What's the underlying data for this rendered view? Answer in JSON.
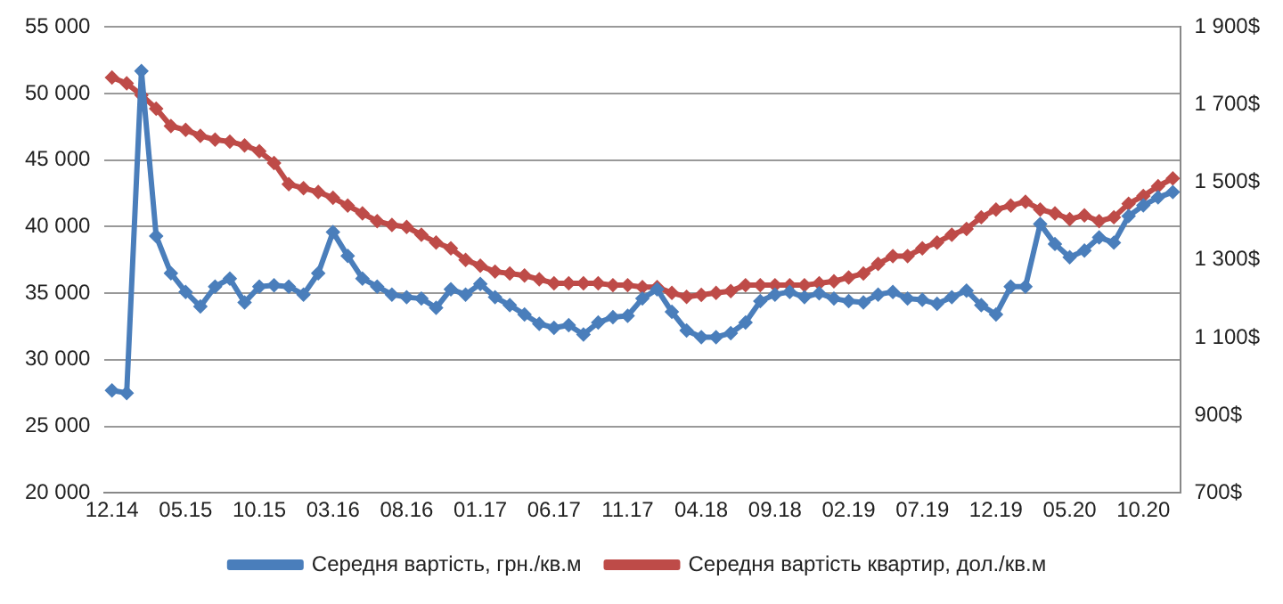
{
  "chart_data": {
    "type": "line",
    "categories": [
      "12.14",
      null,
      null,
      null,
      null,
      "05.15",
      null,
      null,
      null,
      null,
      "10.15",
      null,
      null,
      null,
      null,
      "03.16",
      null,
      null,
      null,
      null,
      "08.16",
      null,
      null,
      null,
      null,
      "01.17",
      null,
      null,
      null,
      null,
      "06.17",
      null,
      null,
      null,
      null,
      "11.17",
      null,
      null,
      null,
      null,
      "04.18",
      null,
      null,
      null,
      null,
      "09.18",
      null,
      null,
      null,
      null,
      "02.19",
      null,
      null,
      null,
      null,
      "07.19",
      null,
      null,
      null,
      null,
      "12.19",
      null,
      null,
      null,
      null,
      "05.20",
      null,
      null,
      null,
      null,
      "10.20",
      null,
      null
    ],
    "series": [
      {
        "name": "Середня вартість, грн./кв.м",
        "color": "#4a7ebb",
        "values": [
          27700,
          27500,
          51700,
          39300,
          36500,
          35100,
          34000,
          35500,
          36100,
          34300,
          35500,
          35600,
          35500,
          34900,
          36500,
          39600,
          37800,
          36100,
          35500,
          34900,
          34700,
          34600,
          33900,
          35300,
          34900,
          35700,
          34700,
          34100,
          33400,
          32700,
          32400,
          32600,
          31900,
          32800,
          33200,
          33300,
          34600,
          35300,
          33600,
          32200,
          31700,
          31700,
          32000,
          32800,
          34400,
          34900,
          35100,
          34700,
          35000,
          34600,
          34400,
          34300,
          34900,
          35100,
          34600,
          34500,
          34200,
          34700,
          35200,
          34100,
          33400,
          35500,
          35500,
          40200,
          38700,
          37700,
          38200,
          39200,
          38800,
          40800,
          41600,
          42200,
          42600
        ]
      },
      {
        "name": "Середня вартість квартир, дол./кв.м",
        "color": "#be4b48",
        "axis": "y2",
        "values": [
          1770,
          1755,
          1725,
          1690,
          1645,
          1635,
          1620,
          1610,
          1605,
          1595,
          1580,
          1550,
          1495,
          1485,
          1475,
          1460,
          1440,
          1420,
          1400,
          1390,
          1385,
          1365,
          1345,
          1330,
          1300,
          1285,
          1270,
          1265,
          1260,
          1250,
          1240,
          1240,
          1240,
          1240,
          1235,
          1235,
          1230,
          1230,
          1215,
          1205,
          1210,
          1215,
          1220,
          1235,
          1235,
          1235,
          1235,
          1235,
          1240,
          1245,
          1255,
          1265,
          1290,
          1310,
          1310,
          1330,
          1345,
          1365,
          1380,
          1410,
          1430,
          1440,
          1450,
          1430,
          1420,
          1405,
          1415,
          1400,
          1410,
          1445,
          1465,
          1490,
          1510
        ]
      }
    ],
    "ylim": [
      20000,
      55000
    ],
    "yticks": [
      {
        "value": 20000,
        "label": "20 000"
      },
      {
        "value": 25000,
        "label": "25 000"
      },
      {
        "value": 30000,
        "label": "30 000"
      },
      {
        "value": 35000,
        "label": "35 000"
      },
      {
        "value": 40000,
        "label": "40 000"
      },
      {
        "value": 45000,
        "label": "45 000"
      },
      {
        "value": 50000,
        "label": "50 000"
      },
      {
        "value": 55000,
        "label": "55 000"
      }
    ],
    "y2lim": [
      700,
      1900
    ],
    "y2ticks": [
      {
        "value": 700,
        "label": "700$"
      },
      {
        "value": 900,
        "label": "900$"
      },
      {
        "value": 1100,
        "label": "1 100$"
      },
      {
        "value": 1300,
        "label": "1 300$"
      },
      {
        "value": 1500,
        "label": "1 500$"
      },
      {
        "value": 1700,
        "label": "1 700$"
      },
      {
        "value": 1900,
        "label": "1 900$"
      }
    ],
    "grid": "y",
    "legend": "bottom",
    "marker": "diamond",
    "line_style": "solid"
  }
}
